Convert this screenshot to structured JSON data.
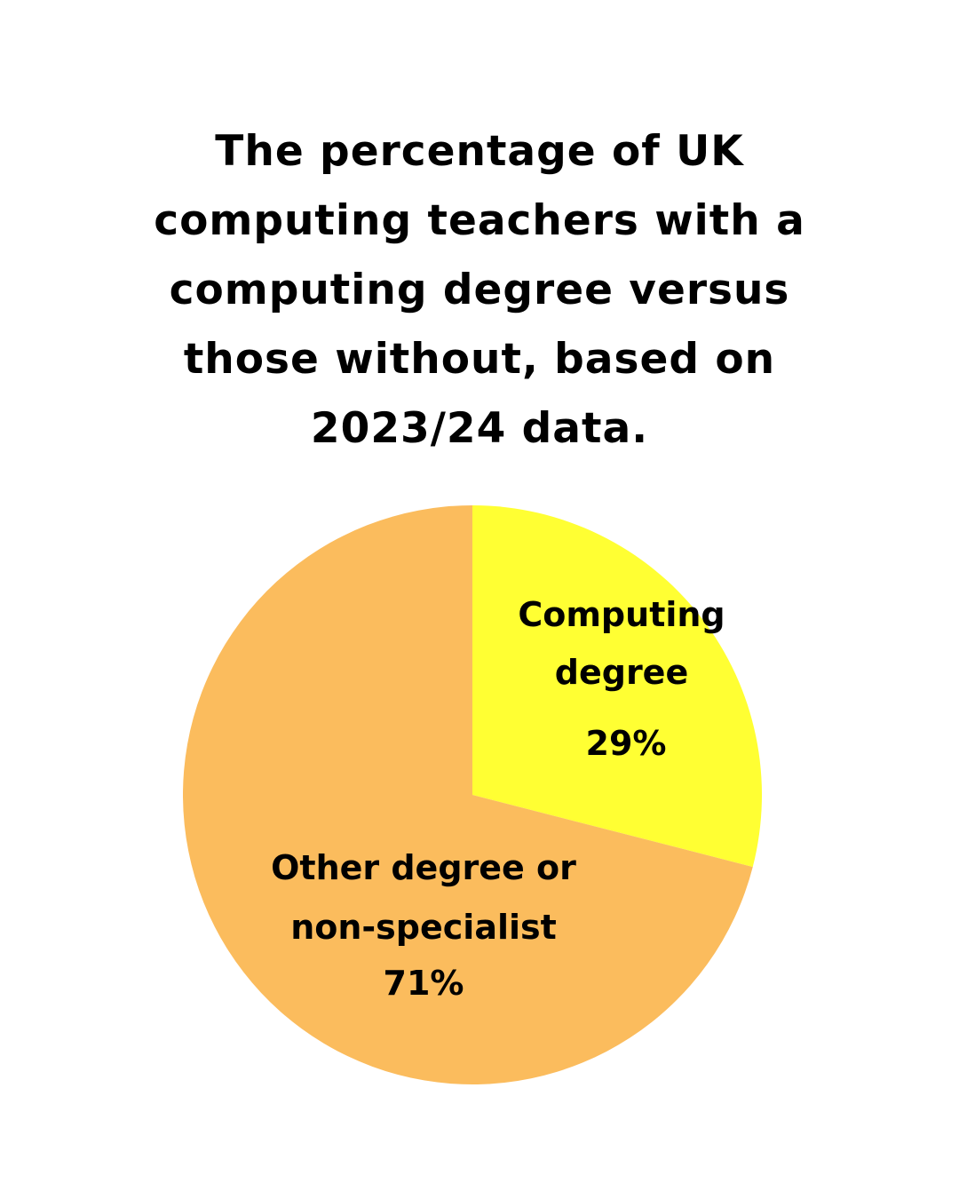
{
  "chart_data": {
    "type": "pie",
    "title": "The percentage of UK computing teachers with a computing degree versus those without, based on 2023/24 data.",
    "slices": [
      {
        "label_lines": [
          "Computing",
          "degree"
        ],
        "value_label": "29%",
        "value": 29,
        "color": "#FFFF33"
      },
      {
        "label_lines": [
          "Other degree or",
          "non-specialist"
        ],
        "value_label": "71%",
        "value": 71,
        "color": "#FBBC5D"
      }
    ],
    "start_angle": "12 o'clock",
    "direction": "clockwise",
    "legend": "none"
  }
}
